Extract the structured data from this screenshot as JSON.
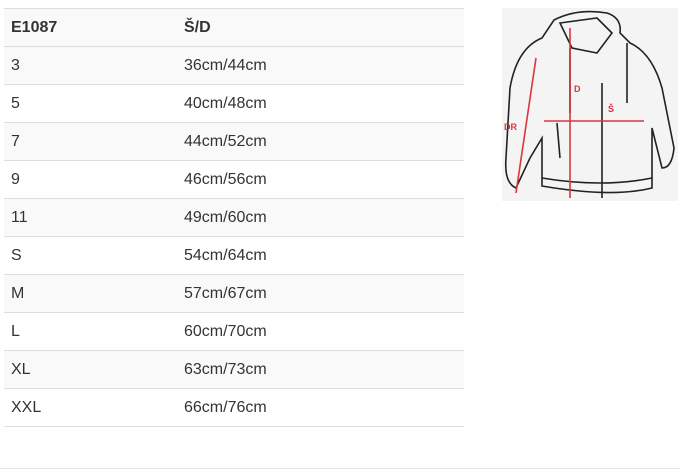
{
  "table": {
    "headers": [
      "E1087",
      "Š/D"
    ],
    "rows": [
      [
        "3",
        "36cm/44cm"
      ],
      [
        "5",
        "40cm/48cm"
      ],
      [
        "7",
        "44cm/52cm"
      ],
      [
        "9",
        "46cm/56cm"
      ],
      [
        "11",
        "49cm/60cm"
      ],
      [
        "S",
        "54cm/64cm"
      ],
      [
        "M",
        "57cm/67cm"
      ],
      [
        "L",
        "60cm/70cm"
      ],
      [
        "XL",
        "63cm/73cm"
      ],
      [
        "XXL",
        "66cm/76cm"
      ]
    ]
  },
  "diagram": {
    "labels": {
      "length": "D",
      "width": "Š",
      "sleeve": "DR"
    },
    "accent": "#d9363e"
  }
}
